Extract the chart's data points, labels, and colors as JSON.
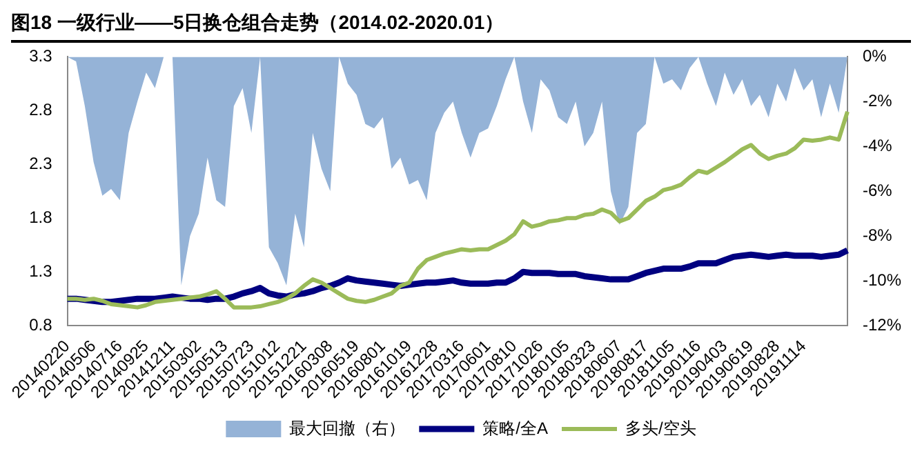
{
  "chart_data": {
    "type": "line",
    "title": "图18 一级行业——5日换仓组合走势（2014.02-2020.01）",
    "categories": [
      "20140220",
      null,
      null,
      "20140506",
      null,
      null,
      "20140716",
      null,
      null,
      "20140925",
      null,
      null,
      "20141211",
      null,
      null,
      "20150302",
      null,
      null,
      "20150513",
      null,
      null,
      "20150723",
      null,
      null,
      "20151012",
      null,
      null,
      "20151221",
      null,
      null,
      "20160308",
      null,
      null,
      "20160519",
      null,
      null,
      "20160801",
      null,
      null,
      "20161019",
      null,
      null,
      "20161228",
      null,
      null,
      "20170316",
      null,
      null,
      "20170601",
      null,
      null,
      "20170810",
      null,
      null,
      "20171026",
      null,
      null,
      "20180105",
      null,
      null,
      "20180323",
      null,
      null,
      "20180607",
      null,
      null,
      "20180817",
      null,
      null,
      "20181105",
      null,
      null,
      "20190116",
      null,
      null,
      "20190403",
      null,
      null,
      "20190619",
      null,
      null,
      "20190828",
      null,
      null,
      "20191114",
      null,
      null,
      null,
      null,
      null
    ],
    "series": [
      {
        "name": "最大回撤（右）",
        "type": "area",
        "axis": "y2",
        "color": "#95b3d7",
        "values": [
          0,
          -0.2,
          -2.2,
          -4.7,
          -6.2,
          -5.9,
          -6.4,
          -3.4,
          -2.0,
          -0.7,
          -1.4,
          0,
          0,
          -10.2,
          -8,
          -7,
          -4.5,
          -6.4,
          -6.7,
          -2.2,
          -1.4,
          -3.4,
          0,
          -8.5,
          -9.2,
          -10.2,
          -7,
          -8.5,
          -3.4,
          -5,
          -6,
          0,
          -1.2,
          -1.7,
          -3,
          -3.2,
          -2.7,
          -5,
          -4.5,
          -5.7,
          -5.5,
          -6.4,
          -3.4,
          -2.5,
          -2,
          -3.4,
          -4.5,
          -3.4,
          -3.2,
          -2.2,
          -1,
          0,
          -2,
          -3.4,
          -1,
          -1.5,
          -2.7,
          -3,
          -2,
          -4,
          -3.4,
          -2,
          -6,
          -7.5,
          -6.7,
          -3.4,
          -3,
          0,
          -1.2,
          -1,
          -1.5,
          -0.5,
          0,
          -1.2,
          -2.2,
          -0.7,
          -1.7,
          -1,
          -2.2,
          -1.7,
          -2.7,
          -1.2,
          -2,
          -0.5,
          -1.5,
          -1,
          -2.7,
          -1.2,
          -2.5,
          0
        ]
      },
      {
        "name": "策略/全A",
        "color": "#000080",
        "values": [
          1.05,
          1.05,
          1.04,
          1.03,
          1.02,
          1.02,
          1.03,
          1.04,
          1.05,
          1.05,
          1.05,
          1.06,
          1.07,
          1.06,
          1.05,
          1.05,
          1.04,
          1.05,
          1.05,
          1.07,
          1.1,
          1.12,
          1.15,
          1.1,
          1.08,
          1.07,
          1.09,
          1.1,
          1.12,
          1.15,
          1.17,
          1.2,
          1.24,
          1.22,
          1.21,
          1.2,
          1.19,
          1.18,
          1.17,
          1.18,
          1.19,
          1.2,
          1.2,
          1.21,
          1.22,
          1.2,
          1.19,
          1.19,
          1.19,
          1.2,
          1.2,
          1.24,
          1.3,
          1.29,
          1.29,
          1.29,
          1.28,
          1.28,
          1.28,
          1.26,
          1.25,
          1.24,
          1.23,
          1.23,
          1.23,
          1.26,
          1.29,
          1.31,
          1.33,
          1.33,
          1.33,
          1.35,
          1.38,
          1.38,
          1.38,
          1.41,
          1.44,
          1.45,
          1.46,
          1.45,
          1.44,
          1.45,
          1.46,
          1.45,
          1.45,
          1.45,
          1.44,
          1.45,
          1.46,
          1.5
        ]
      },
      {
        "name": "多头/空头",
        "color": "#9bbb59",
        "values": [
          1.05,
          1.05,
          1.04,
          1.05,
          1.03,
          1.0,
          0.99,
          0.98,
          0.97,
          0.99,
          1.02,
          1.03,
          1.04,
          1.05,
          1.06,
          1.07,
          1.09,
          1.12,
          1.05,
          0.97,
          0.97,
          0.97,
          0.98,
          1.0,
          1.02,
          1.05,
          1.1,
          1.17,
          1.23,
          1.2,
          1.15,
          1.1,
          1.05,
          1.03,
          1.02,
          1.04,
          1.07,
          1.1,
          1.17,
          1.2,
          1.33,
          1.41,
          1.44,
          1.47,
          1.49,
          1.51,
          1.5,
          1.51,
          1.51,
          1.55,
          1.59,
          1.65,
          1.77,
          1.72,
          1.74,
          1.77,
          1.78,
          1.8,
          1.8,
          1.83,
          1.84,
          1.88,
          1.85,
          1.77,
          1.8,
          1.88,
          1.96,
          2.0,
          2.06,
          2.08,
          2.11,
          2.18,
          2.24,
          2.22,
          2.27,
          2.32,
          2.38,
          2.44,
          2.48,
          2.4,
          2.35,
          2.38,
          2.4,
          2.45,
          2.53,
          2.52,
          2.53,
          2.55,
          2.53,
          2.79
        ]
      }
    ],
    "ylim": [
      0.8,
      3.3
    ],
    "yticks": [
      0.8,
      1.3,
      1.8,
      2.3,
      2.8,
      3.3
    ],
    "y2lim": [
      -12,
      0
    ],
    "y2ticks": [
      {
        "value": 0,
        "label": "0%"
      },
      {
        "value": -2,
        "label": "-2%"
      },
      {
        "value": -4,
        "label": "-4%"
      },
      {
        "value": -6,
        "label": "-6%"
      },
      {
        "value": -8,
        "label": "-8%"
      },
      {
        "value": -10,
        "label": "-10%"
      },
      {
        "value": -12,
        "label": "-12%"
      }
    ],
    "grid": false,
    "legend": "bottom",
    "marker": "none"
  }
}
